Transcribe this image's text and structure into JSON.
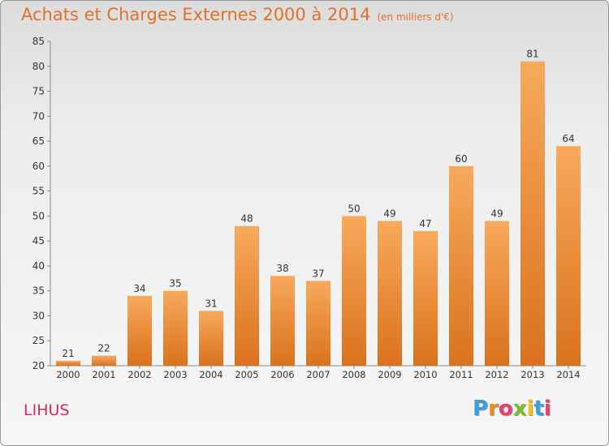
{
  "chart_data": {
    "type": "bar",
    "title": "Achats et Charges Externes 2000 à 2014",
    "subtitle": "(en milliers d'€)",
    "categories": [
      "2000",
      "2001",
      "2002",
      "2003",
      "2004",
      "2005",
      "2006",
      "2007",
      "2008",
      "2009",
      "2010",
      "2011",
      "2012",
      "2013",
      "2014"
    ],
    "values": [
      21,
      22,
      34,
      35,
      31,
      48,
      38,
      37,
      50,
      49,
      47,
      60,
      49,
      81,
      64
    ],
    "ylim": [
      20,
      85
    ],
    "yticks": [
      20,
      25,
      30,
      35,
      40,
      45,
      50,
      55,
      60,
      65,
      70,
      75,
      80,
      85
    ],
    "grid": false,
    "bar_color": "#f28e2c",
    "bar_color_light": "#f5a858",
    "bar_color_dark": "#d9731b"
  },
  "footer": {
    "commune": "LIHUS",
    "logo_letters": [
      "P",
      "r",
      "o",
      "x",
      "i",
      "t",
      "i"
    ],
    "logo_colors": [
      "#3aa0da",
      "#f08a24",
      "#e83f6f",
      "#7dbb2c",
      "#f0c419",
      "#3aa0da",
      "#e83f6f"
    ]
  }
}
